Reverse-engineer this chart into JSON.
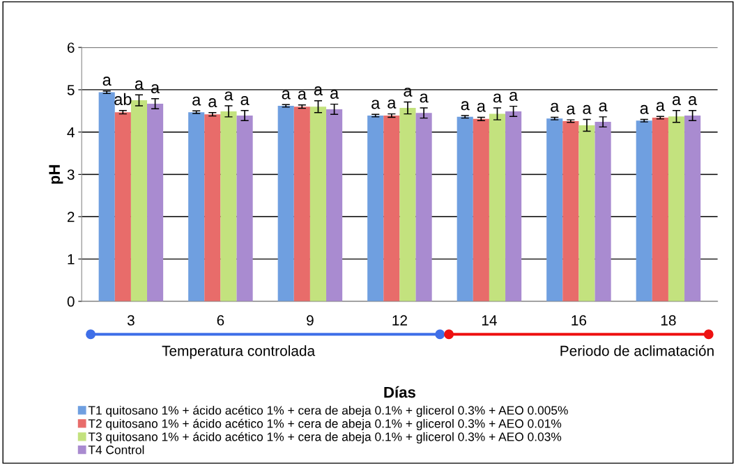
{
  "chart_data": {
    "type": "bar",
    "xlabel": "Días",
    "ylabel": "pH",
    "categories": [
      "3",
      "6",
      "9",
      "12",
      "14",
      "16",
      "18"
    ],
    "ylim": [
      0,
      6
    ],
    "yticks": [
      0,
      1,
      2,
      3,
      4,
      5,
      6
    ],
    "grid": "y",
    "legend": "bottom",
    "series": [
      {
        "name": "T1 quitosano 1% + ácido acético 1% + cera de abeja 0.1% + glicerol 0.3% + AEO 0.005%",
        "color": "#6f9fe0",
        "values": [
          4.94,
          4.47,
          4.62,
          4.39,
          4.36,
          4.32,
          4.27
        ],
        "errors": [
          0.03,
          0.03,
          0.03,
          0.03,
          0.03,
          0.03,
          0.03
        ],
        "value_labels": [
          "a",
          "a",
          "a",
          "a",
          "a",
          "a",
          "a"
        ]
      },
      {
        "name": "T2 quitosano 1% + ácido acético 1% + cera de abeja 0.1% + glicerol 0.3% + AEO 0.01%",
        "color": "#e86c6a",
        "values": [
          4.47,
          4.42,
          4.6,
          4.39,
          4.31,
          4.26,
          4.34
        ],
        "errors": [
          0.04,
          0.04,
          0.04,
          0.04,
          0.04,
          0.03,
          0.03
        ],
        "value_labels": [
          "ab",
          "a",
          "a",
          "a",
          "a",
          "a",
          "a"
        ]
      },
      {
        "name": "T3 quitosano 1% + ácido acético 1% + cera de abeja 0.1% + glicerol 0.3% + AEO 0.03%",
        "color": "#c3e27e",
        "values": [
          4.75,
          4.49,
          4.6,
          4.57,
          4.43,
          4.16,
          4.37
        ],
        "errors": [
          0.13,
          0.13,
          0.14,
          0.14,
          0.14,
          0.14,
          0.14
        ],
        "value_labels": [
          "a",
          "a",
          "a",
          "a",
          "a",
          "a",
          "a"
        ]
      },
      {
        "name": "T4 Control",
        "color": "#a98bd0",
        "values": [
          4.67,
          4.39,
          4.54,
          4.45,
          4.49,
          4.24,
          4.39
        ],
        "errors": [
          0.12,
          0.12,
          0.12,
          0.12,
          0.12,
          0.12,
          0.12
        ],
        "value_labels": [
          "a",
          "a",
          "a",
          "a",
          "a",
          "a",
          "a"
        ]
      }
    ],
    "annotations": [
      "Temperatura controlada",
      "Periodo de aclimatación"
    ]
  }
}
